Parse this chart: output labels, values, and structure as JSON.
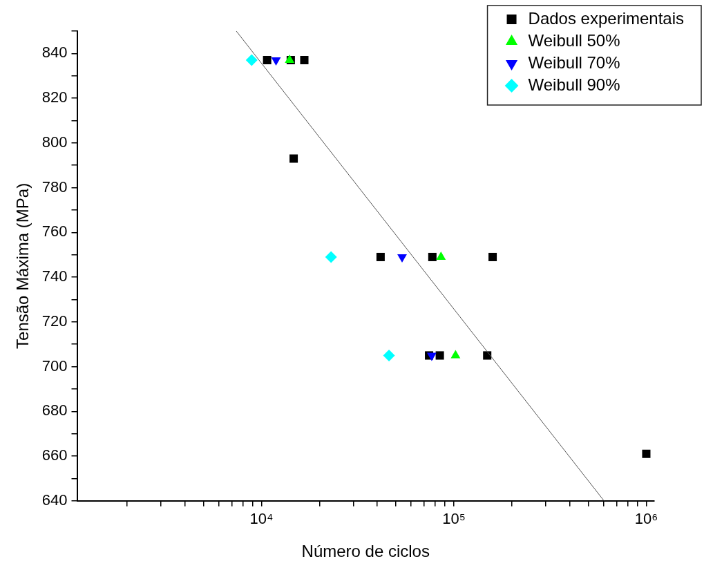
{
  "chart_data": {
    "type": "scatter",
    "xlabel": "Número de ciclos",
    "ylabel": "Tensão Máxima (MPa)",
    "log": "x",
    "grid": false,
    "legend": "top right",
    "xlim": [
      1100,
      1100000
    ],
    "ylim": [
      640,
      850
    ],
    "xticks": [
      {
        "value": 2000,
        "label": null
      },
      {
        "value": 3000,
        "label": null
      },
      {
        "value": 4000,
        "label": null
      },
      {
        "value": 5000,
        "label": null
      },
      {
        "value": 6000,
        "label": null
      },
      {
        "value": 7000,
        "label": null
      },
      {
        "value": 8000,
        "label": null
      },
      {
        "value": 9000,
        "label": null
      },
      {
        "value": 10000,
        "label": "10⁴"
      },
      {
        "value": 20000,
        "label": null
      },
      {
        "value": 30000,
        "label": null
      },
      {
        "value": 40000,
        "label": null
      },
      {
        "value": 50000,
        "label": null
      },
      {
        "value": 60000,
        "label": null
      },
      {
        "value": 70000,
        "label": null
      },
      {
        "value": 80000,
        "label": null
      },
      {
        "value": 90000,
        "label": null
      },
      {
        "value": 100000,
        "label": "10⁵"
      },
      {
        "value": 200000,
        "label": null
      },
      {
        "value": 300000,
        "label": null
      },
      {
        "value": 400000,
        "label": null
      },
      {
        "value": 500000,
        "label": null
      },
      {
        "value": 600000,
        "label": null
      },
      {
        "value": 700000,
        "label": null
      },
      {
        "value": 800000,
        "label": null
      },
      {
        "value": 900000,
        "label": null
      },
      {
        "value": 1000000,
        "label": "10⁶"
      }
    ],
    "yticks": [
      640,
      {
        "value": 650,
        "label": null
      },
      660,
      {
        "value": 670,
        "label": null
      },
      680,
      {
        "value": 690,
        "label": null
      },
      700,
      {
        "value": 710,
        "label": null
      },
      720,
      {
        "value": 730,
        "label": null
      },
      740,
      {
        "value": 750,
        "label": null
      },
      760,
      {
        "value": 770,
        "label": null
      },
      780,
      {
        "value": 790,
        "label": null
      },
      800,
      {
        "value": 810,
        "label": null
      },
      820,
      {
        "value": 830,
        "label": null
      },
      840,
      {
        "value": 850,
        "label": null
      }
    ],
    "series": [
      {
        "name": "Dados experimentais",
        "marker": "square",
        "color": "#000000",
        "x": [
          10700,
          14200,
          16700,
          14700,
          41600,
          77300,
          159000,
          74300,
          84500,
          149000,
          1000000
        ],
        "values": [
          837,
          837,
          837,
          793,
          749,
          749,
          749,
          705,
          705,
          705,
          661
        ]
      },
      {
        "name": "Weibull 50%",
        "marker": "triangle",
        "color": "#00ff00",
        "x": [
          14000,
          85700,
          102000
        ],
        "values": [
          837,
          749,
          705
        ]
      },
      {
        "name": "Weibull 70%",
        "marker": "triangle-down",
        "color": "#0000ff",
        "x": [
          11900,
          53800,
          76700
        ],
        "values": [
          837,
          749,
          705
        ]
      },
      {
        "name": "Weibull 90%",
        "marker": "diamond",
        "color": "#00ffff",
        "x": [
          8890,
          23000,
          46000
        ],
        "values": [
          837,
          749,
          705
        ]
      },
      {
        "type": "line",
        "marker": "none",
        "color": "#555555",
        "x": [
          7400,
          603000
        ],
        "values": [
          850,
          640
        ]
      }
    ]
  }
}
